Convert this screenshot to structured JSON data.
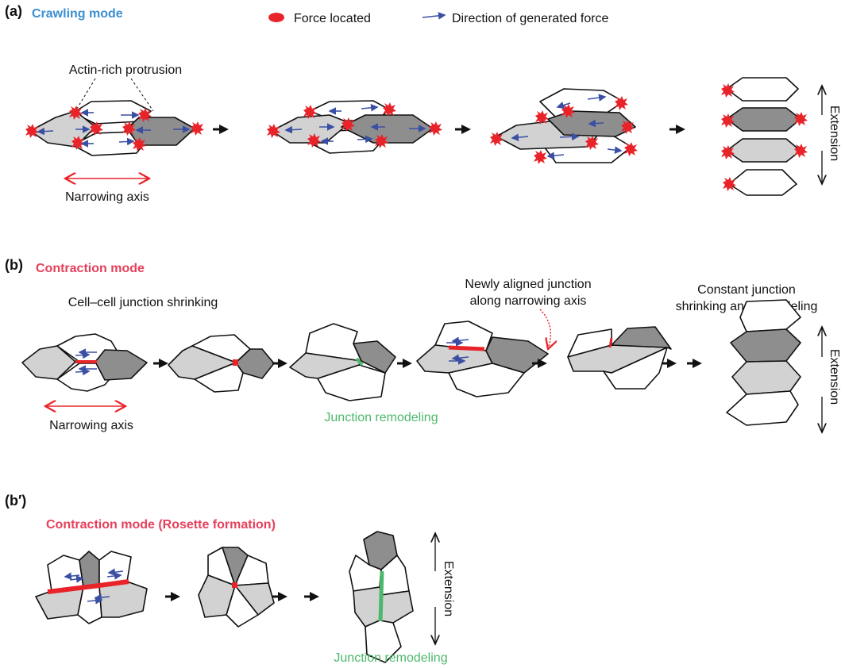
{
  "colors": {
    "crawling_title": "#3b8fd0",
    "contraction_title": "#e5405b",
    "force": "#e8242a",
    "force_direction": "#3a4fa3",
    "junction_remodeling": "#4cb86b",
    "cell_light": "#d2d2d2",
    "cell_dark": "#8e8e8e"
  },
  "panel_a": {
    "label": "(a)",
    "title": "Crawling mode",
    "legend_force": "Force located",
    "legend_direction": "Direction of generated force",
    "protrusion": "Actin-rich protrusion",
    "narrowing": "Narrowing axis",
    "extension": "Extension"
  },
  "panel_b": {
    "label": "(b)",
    "title": "Contraction mode",
    "shrinking": "Cell–cell junction shrinking",
    "newly_1": "Newly aligned junction",
    "newly_2": "along narrowing axis",
    "constant_1": "Constant junction",
    "constant_2": "shrinking and remodeling",
    "narrowing": "Narrowing axis",
    "remodeling": "Junction remodeling",
    "extension": "Extension"
  },
  "panel_b2": {
    "label": "(b′)",
    "title": "Contraction mode (Rosette formation)",
    "remodeling": "Junction remodeling",
    "extension": "Extension"
  }
}
